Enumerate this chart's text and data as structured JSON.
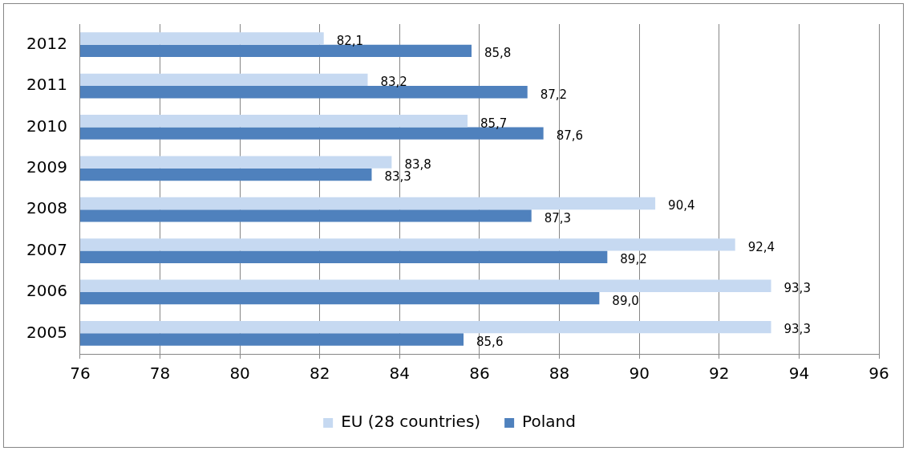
{
  "chart_data": {
    "type": "bar",
    "orientation": "horizontal",
    "categories": [
      "2012",
      "2011",
      "2010",
      "2009",
      "2008",
      "2007",
      "2006",
      "2005"
    ],
    "series": [
      {
        "name": "EU (28 countries)",
        "color": "#c6d9f1",
        "values": [
          82.1,
          83.2,
          85.7,
          83.8,
          90.4,
          92.4,
          93.3,
          93.3
        ],
        "value_labels": [
          "82,1",
          "83,2",
          "85,7",
          "83,8",
          "90,4",
          "92,4",
          "93,3",
          "93,3"
        ]
      },
      {
        "name": "Poland",
        "color": "#4f81bd",
        "values": [
          85.8,
          87.2,
          87.6,
          83.3,
          87.3,
          89.2,
          89.0,
          85.6
        ],
        "value_labels": [
          "85,8",
          "87,2",
          "87,6",
          "83,3",
          "87,3",
          "89,2",
          "89,0",
          "85,6"
        ]
      }
    ],
    "xlim": [
      76,
      96
    ],
    "xticks": [
      76,
      78,
      80,
      82,
      84,
      86,
      88,
      90,
      92,
      94,
      96
    ],
    "grid": "x",
    "legend": "bottom"
  }
}
